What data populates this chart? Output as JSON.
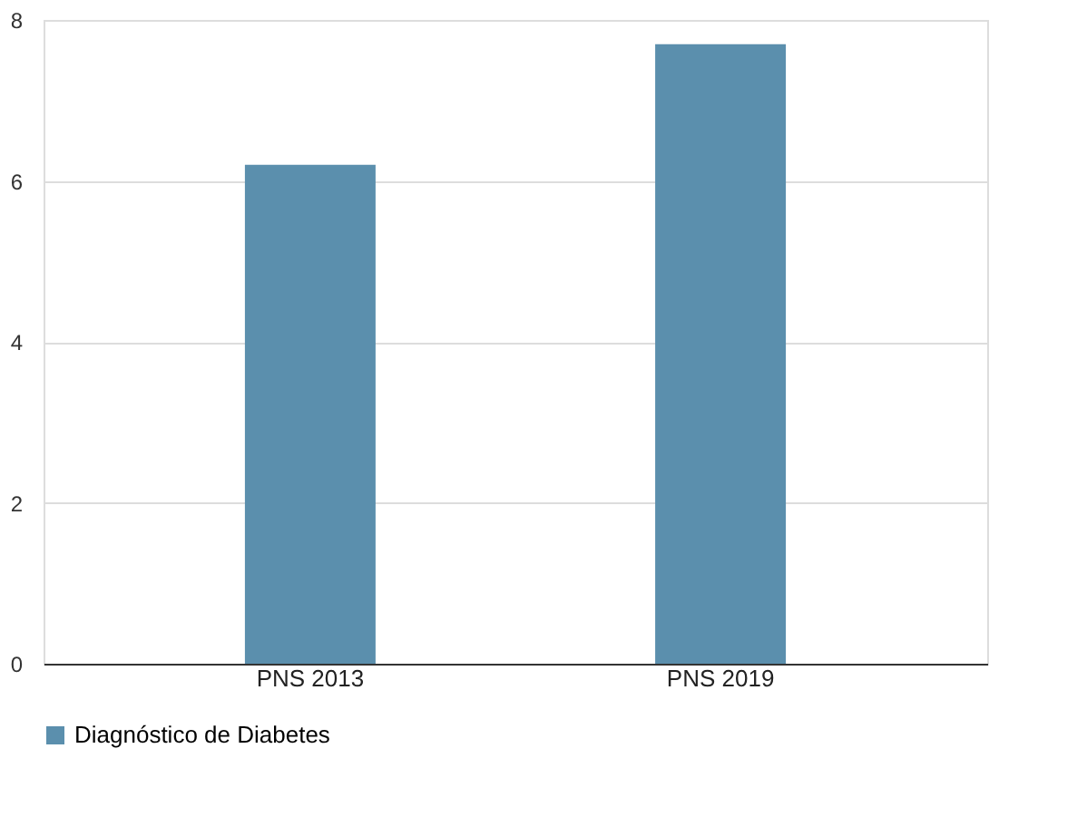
{
  "chart_data": {
    "type": "bar",
    "categories": [
      "PNS 2013",
      "PNS 2019"
    ],
    "series": [
      {
        "name": "Diagnóstico de Diabetes",
        "color": "#5b8fad",
        "values": [
          6.2,
          7.7
        ]
      }
    ],
    "ylim": [
      0,
      8
    ],
    "yticks": [
      0,
      2,
      4,
      6,
      8
    ],
    "grid": "y",
    "legend": "bottom"
  }
}
